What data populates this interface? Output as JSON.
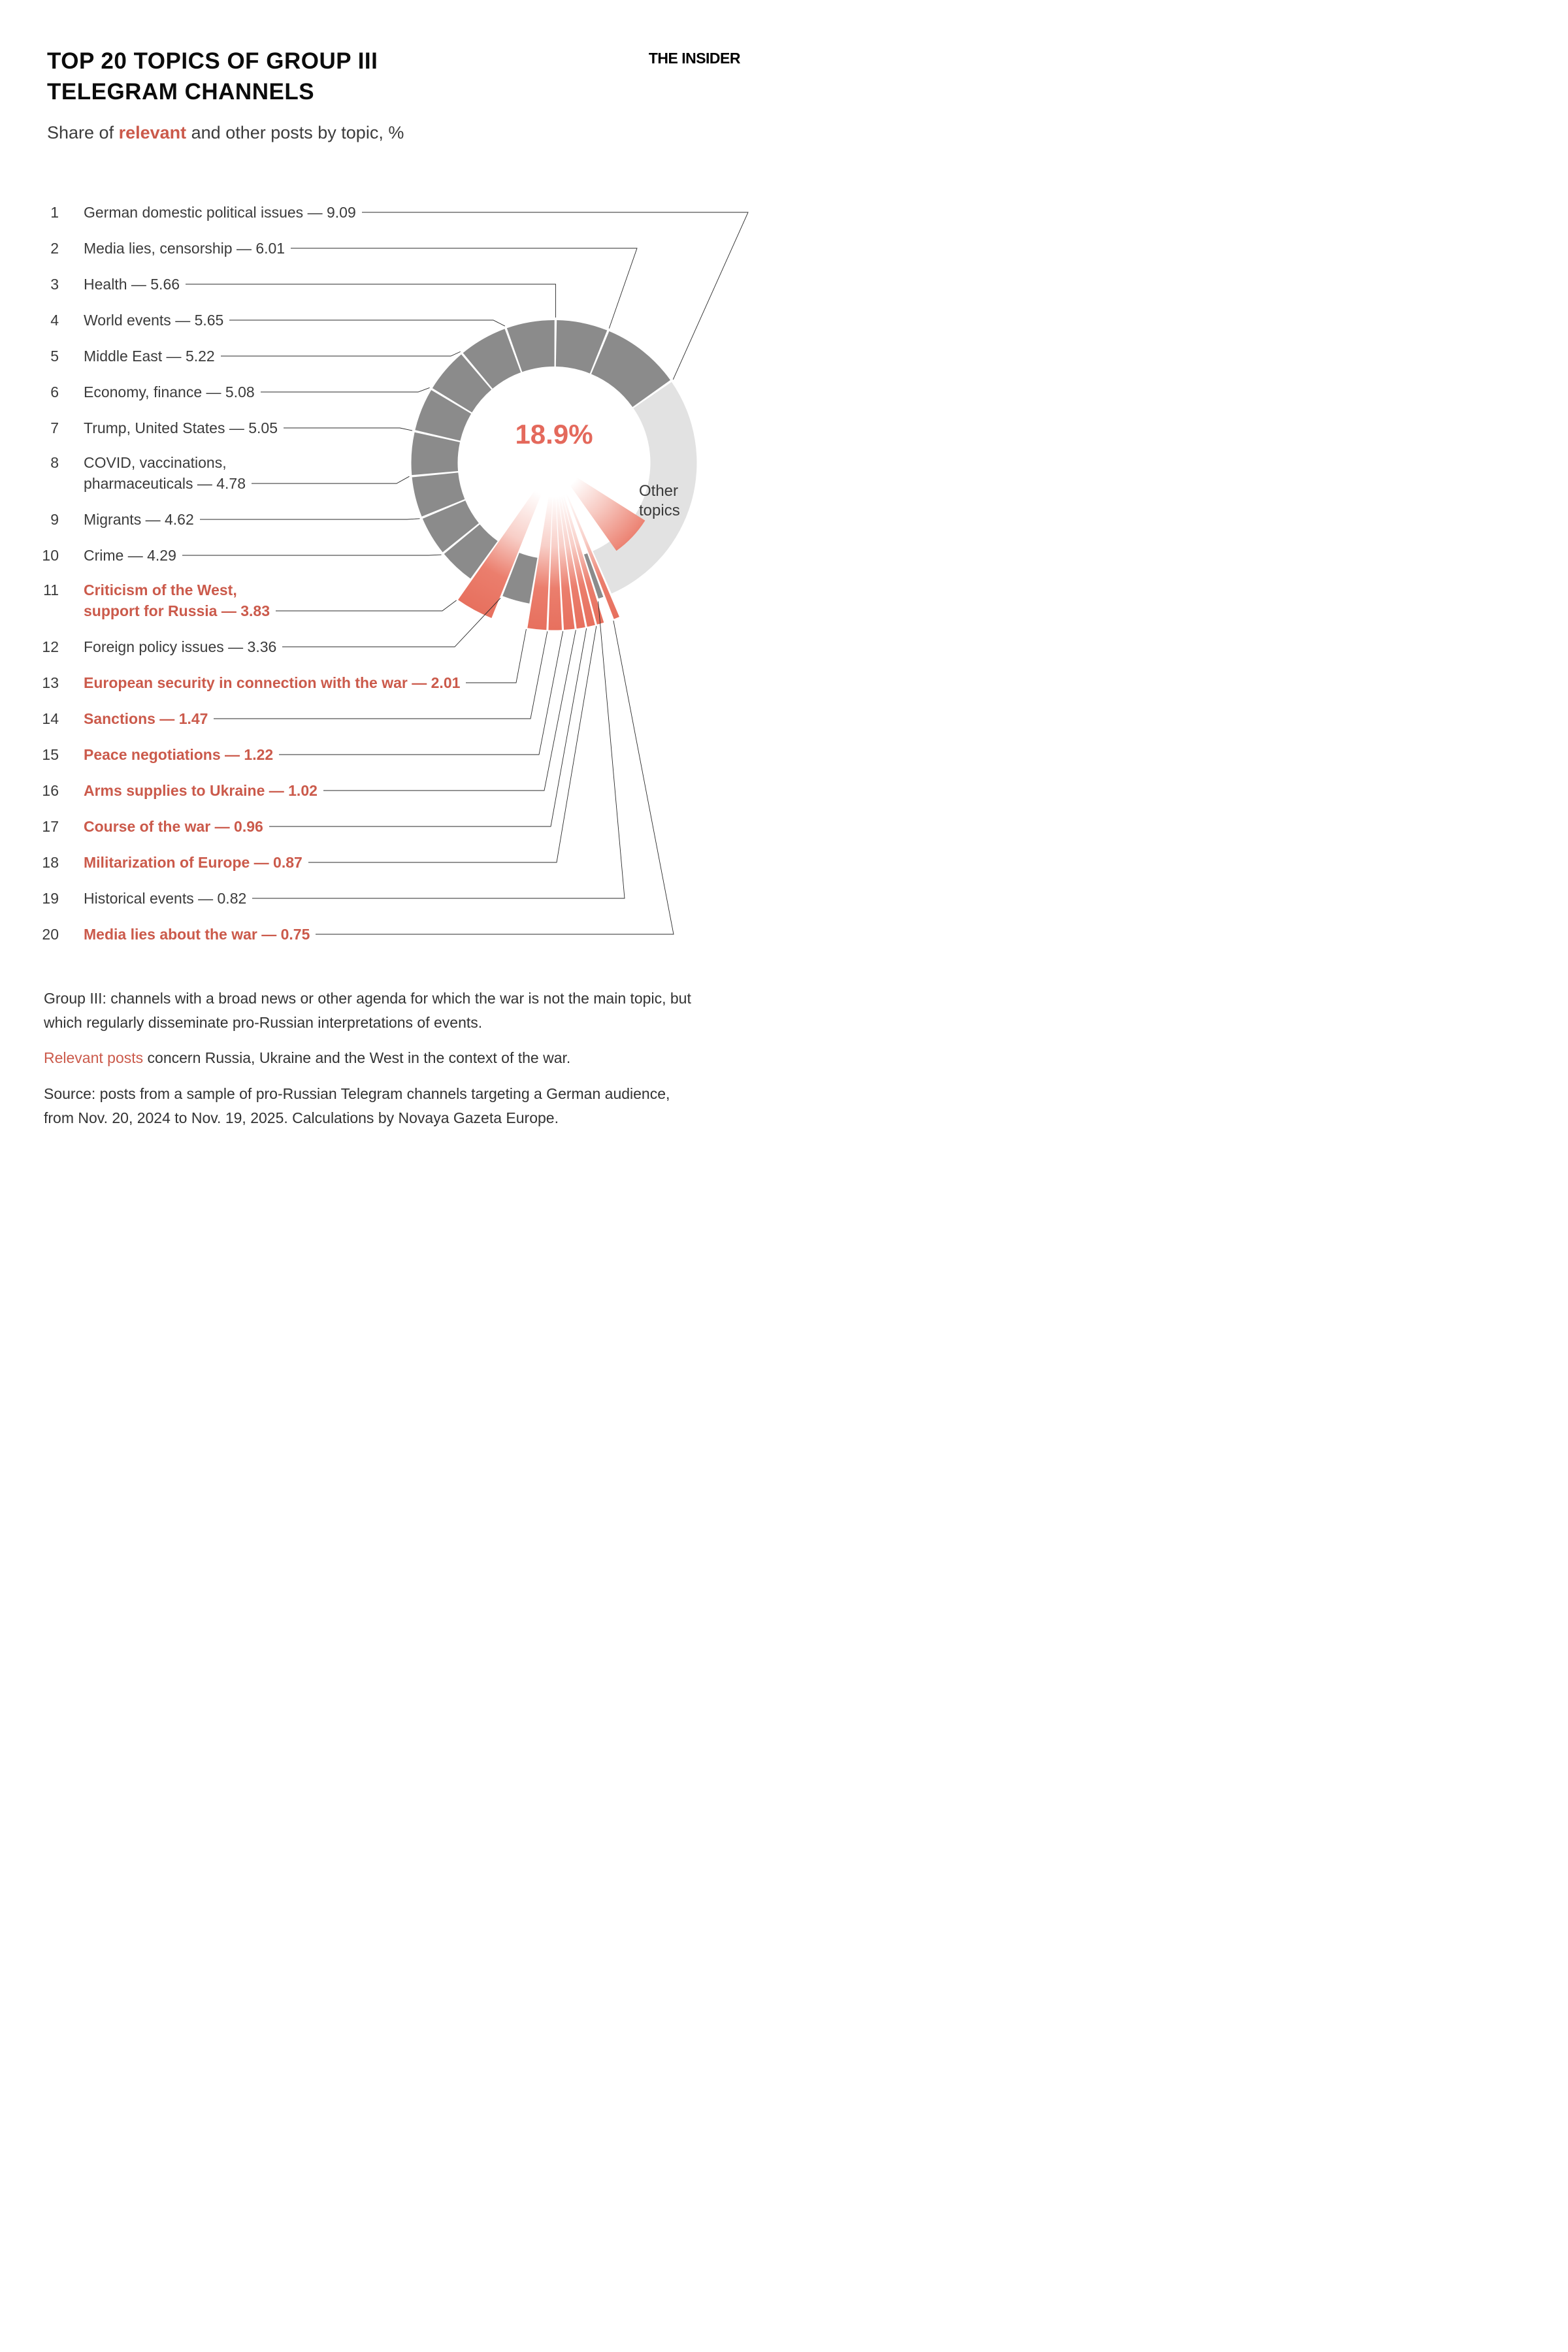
{
  "header": {
    "title_line1": "TOP 20 TOPICS OF GROUP III",
    "title_line2": "TELEGRAM CHANNELS",
    "logo": "THE INSIDER",
    "subtitle_prefix": "Share of ",
    "subtitle_highlight": "relevant",
    "subtitle_suffix": " and other posts by topic, %"
  },
  "chart_data": {
    "type": "donut",
    "title": "Top 20 topics of Group III Telegram channels",
    "unit": "%",
    "center_label": "18.9%",
    "other_label": [
      "Other",
      "topics"
    ],
    "topics": [
      {
        "rank": 1,
        "name": "German domestic political issues",
        "value": 9.09,
        "relevant": false,
        "lines": [
          "German domestic political issues — 9.09"
        ]
      },
      {
        "rank": 2,
        "name": "Media lies, censorship",
        "value": 6.01,
        "relevant": false,
        "lines": [
          "Media lies, censorship — 6.01"
        ]
      },
      {
        "rank": 3,
        "name": "Health",
        "value": 5.66,
        "relevant": false,
        "lines": [
          "Health — 5.66"
        ]
      },
      {
        "rank": 4,
        "name": "World events",
        "value": 5.65,
        "relevant": false,
        "lines": [
          "World events — 5.65"
        ]
      },
      {
        "rank": 5,
        "name": "Middle East",
        "value": 5.22,
        "relevant": false,
        "lines": [
          "Middle East — 5.22"
        ]
      },
      {
        "rank": 6,
        "name": "Economy, finance",
        "value": 5.08,
        "relevant": false,
        "lines": [
          "Economy, finance — 5.08"
        ]
      },
      {
        "rank": 7,
        "name": "Trump, United States",
        "value": 5.05,
        "relevant": false,
        "lines": [
          "Trump, United States — 5.05"
        ]
      },
      {
        "rank": 8,
        "name": "COVID, vaccinations, pharmaceuticals",
        "value": 4.78,
        "relevant": false,
        "lines": [
          "COVID, vaccinations,",
          "pharmaceuticals — 4.78"
        ]
      },
      {
        "rank": 9,
        "name": "Migrants",
        "value": 4.62,
        "relevant": false,
        "lines": [
          "Migrants — 4.62"
        ]
      },
      {
        "rank": 10,
        "name": "Crime",
        "value": 4.29,
        "relevant": false,
        "lines": [
          "Crime — 4.29"
        ]
      },
      {
        "rank": 11,
        "name": "Criticism of the West, support for Russia",
        "value": 3.83,
        "relevant": true,
        "lines": [
          "Criticism of the West,",
          "support for Russia — 3.83"
        ]
      },
      {
        "rank": 12,
        "name": "Foreign policy issues",
        "value": 3.36,
        "relevant": false,
        "lines": [
          "Foreign policy issues — 3.36"
        ]
      },
      {
        "rank": 13,
        "name": "European security in connection with the war",
        "value": 2.01,
        "relevant": true,
        "lines": [
          "European security in connection with the war — 2.01"
        ]
      },
      {
        "rank": 14,
        "name": "Sanctions",
        "value": 1.47,
        "relevant": true,
        "lines": [
          "Sanctions — 1.47"
        ]
      },
      {
        "rank": 15,
        "name": "Peace negotiations",
        "value": 1.22,
        "relevant": true,
        "lines": [
          "Peace negotiations — 1.22"
        ]
      },
      {
        "rank": 16,
        "name": "Arms supplies to Ukraine",
        "value": 1.02,
        "relevant": true,
        "lines": [
          "Arms supplies to Ukraine — 1.02"
        ]
      },
      {
        "rank": 17,
        "name": "Course of the war",
        "value": 0.96,
        "relevant": true,
        "lines": [
          "Course of the war — 0.96"
        ]
      },
      {
        "rank": 18,
        "name": "Militarization of Europe",
        "value": 0.87,
        "relevant": true,
        "lines": [
          "Militarization of Europe — 0.87"
        ]
      },
      {
        "rank": 19,
        "name": "Historical events",
        "value": 0.82,
        "relevant": false,
        "lines": [
          "Historical events — 0.82"
        ]
      },
      {
        "rank": 20,
        "name": "Media lies about the war",
        "value": 0.75,
        "relevant": true,
        "lines": [
          "Media lies about the war — 0.75"
        ]
      }
    ]
  },
  "colors": {
    "relevant": "#e8705f",
    "other_topic_segment": "#8b8b8b",
    "other_topics_slice": "#e2e2e2",
    "relevant_text": "#cb5a4b"
  },
  "footer": {
    "group_note": "Group III: channels with a broad news or other agenda for which the war is not the main topic, but which regularly disseminate pro-Russian interpretations of events.",
    "relevant_highlight": "Relevant posts",
    "relevant_rest": " concern Russia, Ukraine and the West in the context of the war.",
    "source_note": "Source: posts from a sample of pro-Russian Telegram channels targeting a German audience, from Nov. 20, 2024 to Nov. 19, 2025. Calculations by Novaya Gazeta Europe."
  }
}
